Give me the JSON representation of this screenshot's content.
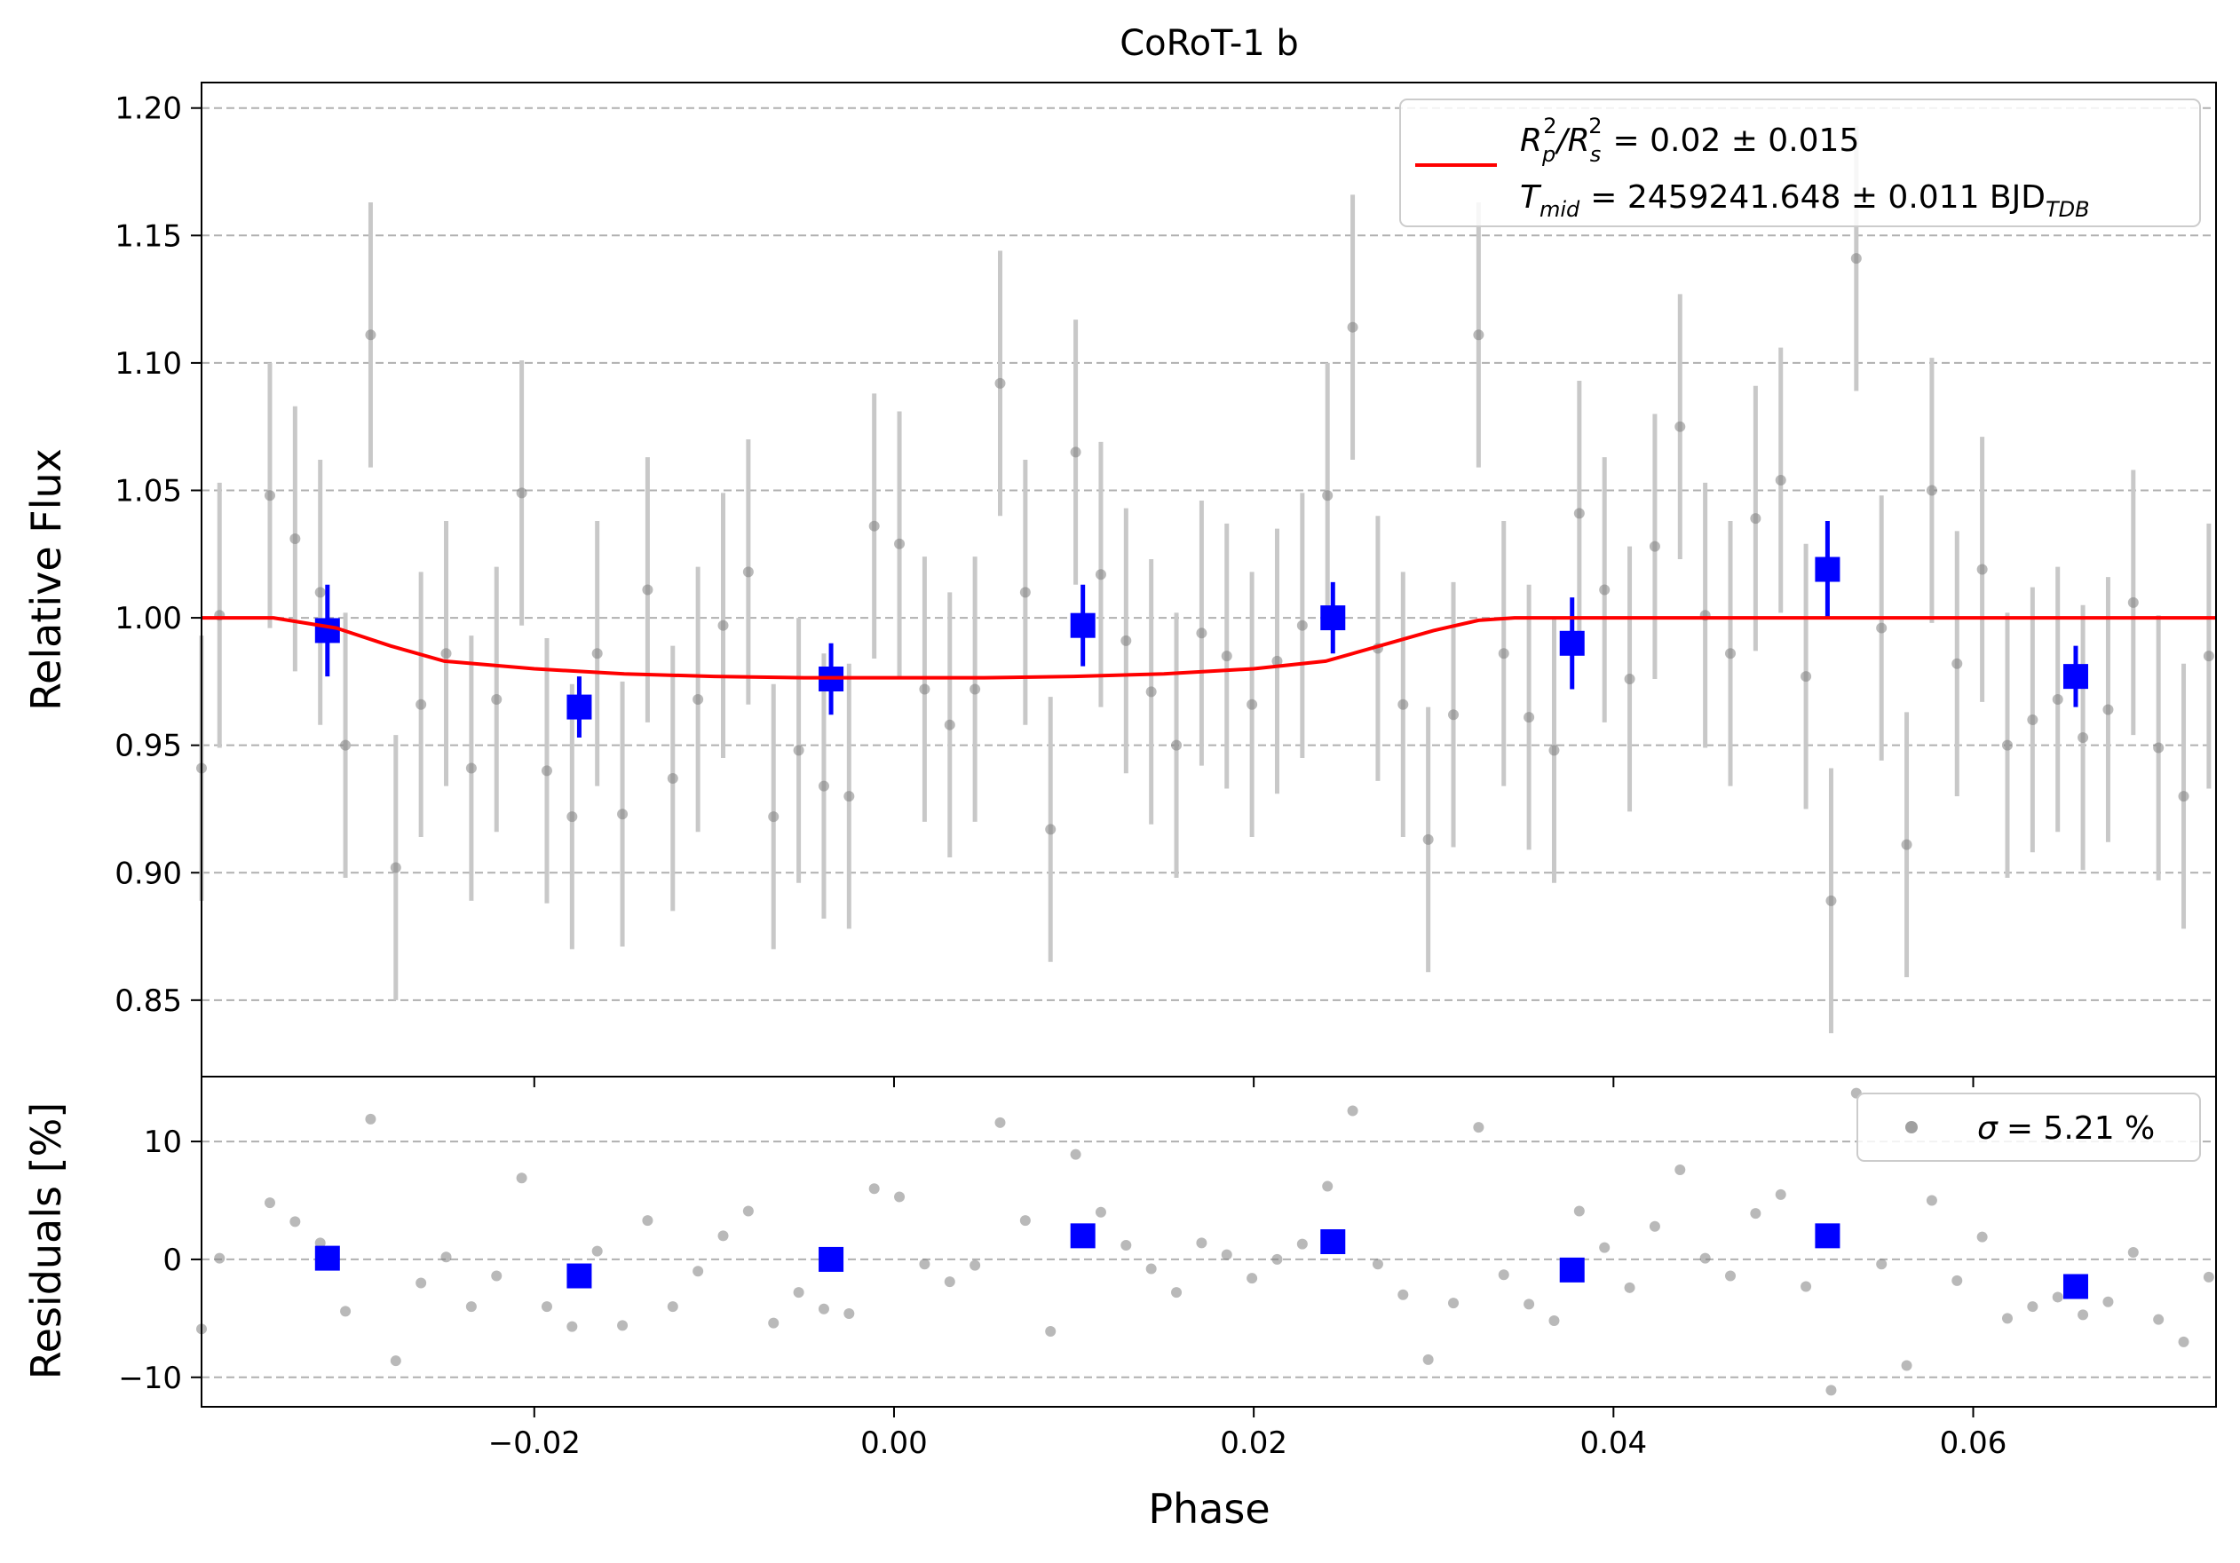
{
  "figure": {
    "title": "CoRoT-1 b"
  },
  "chart_data": [
    {
      "type": "scatter",
      "panel": "light-curve",
      "title": "CoRoT-1 b",
      "xlabel": "",
      "ylabel": "Relative Flux",
      "xlim": [
        -0.0385,
        0.0735
      ],
      "ylim": [
        0.82,
        1.21
      ],
      "yticks": [
        0.85,
        0.9,
        0.95,
        1.0,
        1.05,
        1.1,
        1.15,
        1.2
      ],
      "ytick_labels": [
        "0.85",
        "0.90",
        "0.95",
        "1.00",
        "1.05",
        "1.10",
        "1.15",
        "1.20"
      ],
      "grid": "horizontal dashed",
      "legend_position": "top-right",
      "legend": {
        "line1_lhs": "R",
        "line1_sub1": "p",
        "line1_sup1": "2",
        "line1_slash": "/R",
        "line1_sub2": "s",
        "line1_sup2": "2",
        "line1_value": "= 0.02 ± 0.015",
        "line2_lhs": "T",
        "line2_sub": "mid",
        "line2_value": "= 2459241.648 ± 0.011 BJD",
        "line2_unit_sub": "TDB"
      },
      "colors": {
        "data": "#808080",
        "errorbar": "#c8c8c8",
        "binned": "#0000ff",
        "model": "#ff0000",
        "grid": "#b0b0b0"
      },
      "series": [
        {
          "kind": "raw",
          "x": [
            -0.0385,
            -0.0375,
            -0.0347,
            -0.0333,
            -0.0319,
            -0.0305,
            -0.0291,
            -0.0277,
            -0.0263,
            -0.0249,
            -0.0235,
            -0.0221,
            -0.0207,
            -0.0193,
            -0.0179,
            -0.0165,
            -0.0151,
            -0.0137,
            -0.0123,
            -0.0109,
            -0.0095,
            -0.0081,
            -0.0067,
            -0.0053,
            -0.0039,
            -0.0025,
            -0.0011,
            0.0003,
            0.0017,
            0.0031,
            0.0045,
            0.0059,
            0.0073,
            0.0087,
            0.0101,
            0.0115,
            0.0129,
            0.0143,
            0.0157,
            0.0171,
            0.0185,
            0.0199,
            0.0213,
            0.0227,
            0.0241,
            0.0255,
            0.0269,
            0.0283,
            0.0297,
            0.0311,
            0.0325,
            0.0339,
            0.0353,
            0.0367,
            0.0381,
            0.0395,
            0.0409,
            0.0423,
            0.0437,
            0.0451,
            0.0465,
            0.0479,
            0.0493,
            0.0507,
            0.0521,
            0.0535,
            0.0549,
            0.0563,
            0.0577,
            0.0591,
            0.0605,
            0.0619,
            0.0633,
            0.0647,
            0.0661,
            0.0675,
            0.0689,
            0.0703,
            0.0717,
            0.0731
          ],
          "y": [
            0.941,
            1.001,
            1.048,
            1.031,
            1.01,
            0.95,
            1.111,
            0.902,
            0.966,
            0.986,
            0.941,
            0.968,
            1.049,
            0.94,
            0.922,
            0.986,
            0.923,
            1.011,
            0.937,
            0.968,
            0.997,
            1.018,
            0.922,
            0.948,
            0.934,
            0.93,
            1.036,
            1.029,
            0.972,
            0.958,
            0.972,
            1.092,
            1.01,
            0.917,
            1.065,
            1.017,
            0.991,
            0.971,
            0.95,
            0.994,
            0.985,
            0.966,
            0.983,
            0.997,
            1.048,
            1.114,
            0.988,
            0.966,
            0.913,
            0.962,
            1.111,
            0.986,
            0.961,
            0.948,
            1.041,
            1.011,
            0.976,
            1.028,
            1.075,
            1.001,
            0.986,
            1.039,
            1.054,
            0.977,
            0.889,
            1.141,
            0.996,
            0.911,
            1.05,
            0.982,
            1.019,
            0.95,
            0.96,
            0.968,
            0.953,
            0.964,
            1.006,
            0.949,
            0.93,
            0.985
          ],
          "yerr": 0.052
        },
        {
          "kind": "binned",
          "x": [
            -0.0315,
            -0.0175,
            -0.0035,
            0.0105,
            0.0244,
            0.0377,
            0.0519,
            0.0657
          ],
          "y": [
            0.995,
            0.965,
            0.976,
            0.997,
            1.0,
            0.99,
            1.019,
            0.977
          ],
          "yerr": [
            0.018,
            0.012,
            0.014,
            0.016,
            0.014,
            0.018,
            0.019,
            0.012
          ]
        },
        {
          "kind": "model",
          "name": "transit model",
          "x": [
            -0.0385,
            -0.0345,
            -0.031,
            -0.028,
            -0.025,
            -0.02,
            -0.015,
            -0.01,
            -0.005,
            0.0,
            0.005,
            0.01,
            0.015,
            0.02,
            0.024,
            0.027,
            0.03,
            0.0325,
            0.0345,
            0.04,
            0.05,
            0.06,
            0.0735
          ],
          "y": [
            1.0,
            1.0,
            0.996,
            0.989,
            0.983,
            0.98,
            0.978,
            0.977,
            0.9765,
            0.9765,
            0.9765,
            0.977,
            0.978,
            0.98,
            0.983,
            0.989,
            0.995,
            0.999,
            1.0,
            1.0,
            1.0,
            1.0,
            1.0
          ]
        }
      ]
    },
    {
      "type": "scatter",
      "panel": "residuals",
      "xlabel": "Phase",
      "ylabel": "Residuals [%]",
      "xlim": [
        -0.0385,
        0.0735
      ],
      "ylim": [
        -12.5,
        15.5
      ],
      "xticks": [
        -0.02,
        0.0,
        0.02,
        0.04,
        0.06
      ],
      "xtick_labels": [
        "−0.02",
        "0.00",
        "0.02",
        "0.04",
        "0.06"
      ],
      "yticks": [
        -10,
        0,
        10
      ],
      "ytick_labels": [
        "−10",
        "0",
        "10"
      ],
      "grid": "horizontal dashed",
      "legend_position": "top-right",
      "legend": {
        "sigma_symbol": "σ",
        "sigma_text": "= 5.21 %"
      },
      "series": [
        {
          "kind": "raw",
          "x": [
            -0.0385,
            -0.0375,
            -0.0347,
            -0.0333,
            -0.0319,
            -0.0305,
            -0.0291,
            -0.0277,
            -0.0263,
            -0.0249,
            -0.0235,
            -0.0221,
            -0.0207,
            -0.0193,
            -0.0179,
            -0.0165,
            -0.0151,
            -0.0137,
            -0.0123,
            -0.0109,
            -0.0095,
            -0.0081,
            -0.0067,
            -0.0053,
            -0.0039,
            -0.0025,
            -0.0011,
            0.0003,
            0.0017,
            0.0031,
            0.0045,
            0.0059,
            0.0073,
            0.0087,
            0.0101,
            0.0115,
            0.0129,
            0.0143,
            0.0157,
            0.0171,
            0.0185,
            0.0199,
            0.0213,
            0.0227,
            0.0241,
            0.0255,
            0.0269,
            0.0283,
            0.0297,
            0.0311,
            0.0325,
            0.0339,
            0.0353,
            0.0367,
            0.0381,
            0.0395,
            0.0409,
            0.0423,
            0.0437,
            0.0451,
            0.0465,
            0.0479,
            0.0493,
            0.0507,
            0.0521,
            0.0535,
            0.0549,
            0.0563,
            0.0577,
            0.0591,
            0.0605,
            0.0619,
            0.0633,
            0.0647,
            0.0661,
            0.0675,
            0.0689,
            0.0703,
            0.0717,
            0.0731
          ],
          "y": [
            -5.9,
            0.1,
            4.8,
            3.2,
            1.4,
            -4.4,
            11.9,
            -8.6,
            -2.0,
            0.2,
            -4.0,
            -1.4,
            6.9,
            -4.0,
            -5.7,
            0.7,
            -5.6,
            3.3,
            -4.0,
            -1.0,
            2.0,
            4.1,
            -5.4,
            -2.8,
            -4.2,
            -4.6,
            6.0,
            5.3,
            -0.4,
            -1.9,
            -0.5,
            11.6,
            3.3,
            -6.1,
            8.9,
            4.0,
            1.2,
            -0.8,
            -2.8,
            1.4,
            0.4,
            -1.6,
            0.0,
            1.3,
            6.2,
            12.6,
            -0.4,
            -3.0,
            -8.5,
            -3.7,
            11.2,
            -1.3,
            -3.8,
            -5.2,
            4.1,
            1.0,
            -2.4,
            2.8,
            7.6,
            0.1,
            -1.4,
            3.9,
            5.5,
            -2.3,
            -11.1,
            14.1,
            -0.4,
            -9.0,
            5.0,
            -1.8,
            1.9,
            -5.0,
            -4.0,
            -3.2,
            -4.7,
            -3.6,
            0.6,
            -5.1,
            -7.0,
            -1.5
          ]
        },
        {
          "kind": "binned",
          "x": [
            -0.0315,
            -0.0175,
            -0.0035,
            0.0105,
            0.0244,
            0.0377,
            0.0519,
            0.0657
          ],
          "y": [
            0.1,
            -1.4,
            0.0,
            2.0,
            1.5,
            -0.9,
            2.0,
            -2.3
          ]
        }
      ]
    }
  ]
}
